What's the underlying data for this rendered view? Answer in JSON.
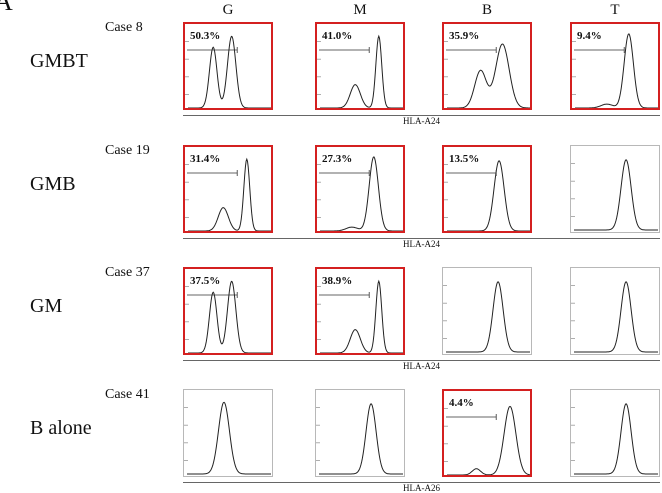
{
  "panel_letter": "A",
  "column_headers": [
    "G",
    "M",
    "B",
    "T"
  ],
  "rows": [
    {
      "group": "GMBT",
      "case": "Case 8",
      "axis_label": "HLA-A24",
      "plots": [
        {
          "highlighted": true,
          "percent": "50.3%",
          "shape": "double-G"
        },
        {
          "highlighted": true,
          "percent": "41.0%",
          "shape": "double-M"
        },
        {
          "highlighted": true,
          "percent": "35.9%",
          "shape": "double-B"
        },
        {
          "highlighted": true,
          "percent": "9.4%",
          "shape": "single-narrow"
        }
      ]
    },
    {
      "group": "GMB",
      "case": "Case 19",
      "axis_label": "HLA-A24",
      "plots": [
        {
          "highlighted": true,
          "percent": "31.4%",
          "shape": "double-M"
        },
        {
          "highlighted": true,
          "percent": "27.3%",
          "shape": "single-narrow"
        },
        {
          "highlighted": true,
          "percent": "13.5%",
          "shape": "single-mid"
        },
        {
          "highlighted": false,
          "percent": "",
          "shape": "single-mid"
        }
      ]
    },
    {
      "group": "GM",
      "case": "Case 37",
      "axis_label": "HLA-A24",
      "plots": [
        {
          "highlighted": true,
          "percent": "37.5%",
          "shape": "double-G"
        },
        {
          "highlighted": true,
          "percent": "38.9%",
          "shape": "double-M"
        },
        {
          "highlighted": false,
          "percent": "",
          "shape": "single-mid"
        },
        {
          "highlighted": false,
          "percent": "",
          "shape": "single-mid"
        }
      ]
    },
    {
      "group": "B alone",
      "case": "Case 41",
      "axis_label": "HLA-A26",
      "plots": [
        {
          "highlighted": false,
          "percent": "",
          "shape": "single-left"
        },
        {
          "highlighted": false,
          "percent": "",
          "shape": "single-mid"
        },
        {
          "highlighted": true,
          "percent": "4.4%",
          "shape": "single-right"
        },
        {
          "highlighted": false,
          "percent": "",
          "shape": "single-mid"
        }
      ]
    }
  ],
  "colors": {
    "highlight_border": "#d42020",
    "plain_border": "#b8b8b8",
    "curve": "#222222"
  }
}
